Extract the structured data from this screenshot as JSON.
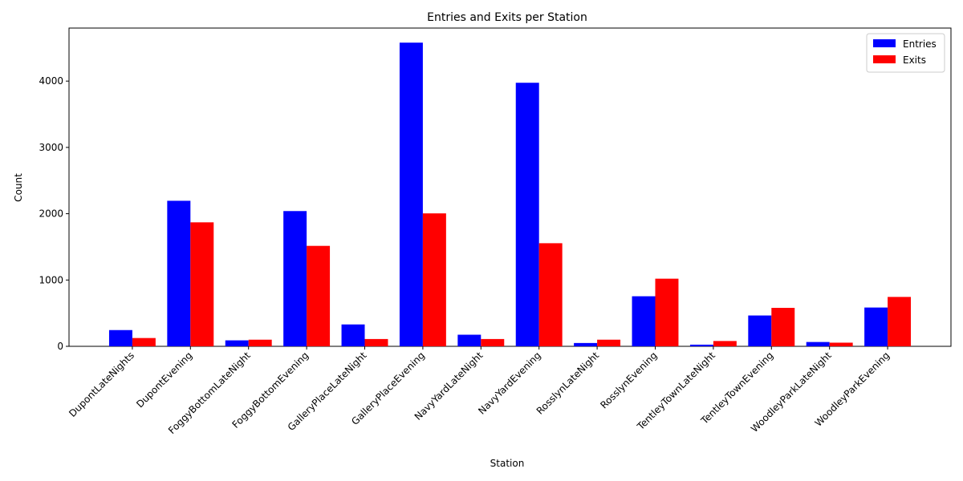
{
  "chart_data": {
    "type": "bar",
    "title": "Entries and Exits per Station",
    "xlabel": "Station",
    "ylabel": "Count",
    "ylim": [
      0,
      4800
    ],
    "yticks": [
      0,
      1000,
      2000,
      3000,
      4000
    ],
    "grid": false,
    "legend_position": "top-right",
    "categories": [
      "DupontLateNights",
      "DupontEvening",
      "FoggyBottomLateNight",
      "FoggyBottomEvening",
      "GalleryPlaceLateNight",
      "GalleryPlaceEvening",
      "NavyYardLateNight",
      "NavyYardEvening",
      "RosslynLateNight",
      "RosslynEvening",
      "TentleyTownLateNight",
      "TentleyTownEvening",
      "WoodleyParkLateNight",
      "WoodleyParkEvening"
    ],
    "series": [
      {
        "name": "Entries",
        "color": "#0000ff",
        "values": [
          245,
          2195,
          90,
          2040,
          330,
          4580,
          175,
          3975,
          50,
          755,
          25,
          465,
          65,
          585
        ]
      },
      {
        "name": "Exits",
        "color": "#ff0000",
        "values": [
          125,
          1870,
          100,
          1515,
          110,
          2005,
          110,
          1555,
          100,
          1020,
          80,
          580,
          55,
          745
        ]
      }
    ]
  }
}
